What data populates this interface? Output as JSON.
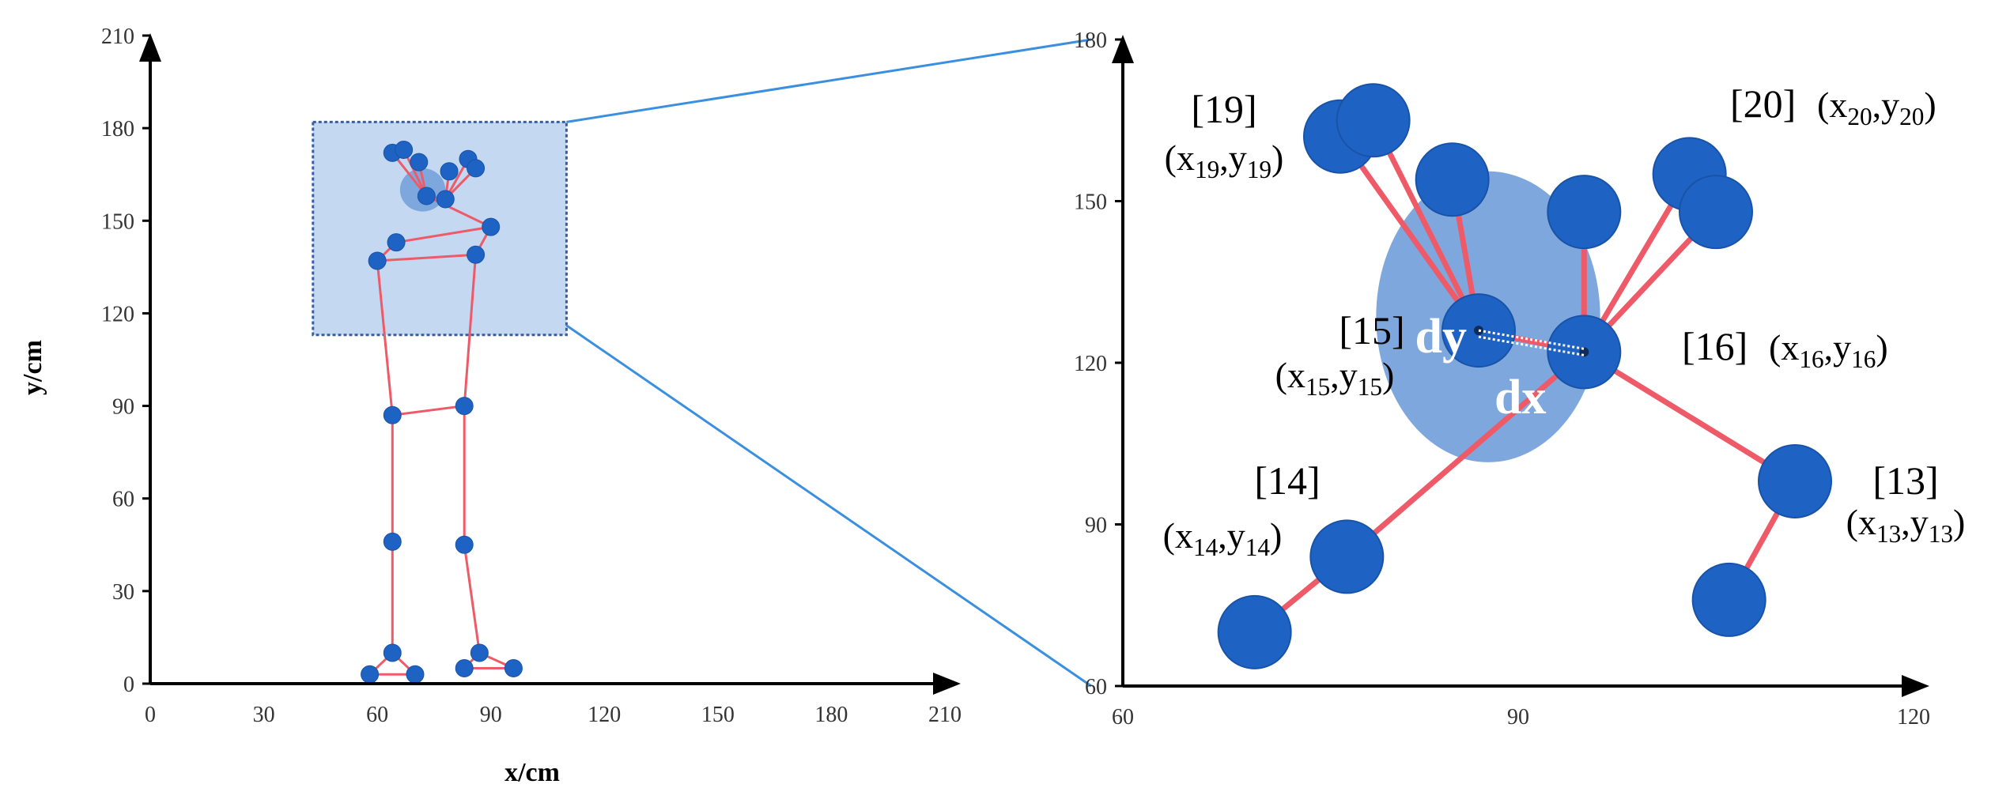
{
  "colors": {
    "axis": "#000000",
    "tick_label": "#333333",
    "bone": "#ee5a67",
    "joint": "#1e63c4",
    "joint_stroke": "#1853a8",
    "zoom_box_fill": "#c4d8f1",
    "zoom_box_stroke": "#3a5f9e",
    "zoom_line": "#3b8fe0",
    "head_ellipse": "#7ea8dd",
    "dxdy_text": "#ffffff"
  },
  "left_chart": {
    "xlabel": "x/cm",
    "ylabel": "y/cm",
    "xlim": [
      0,
      210
    ],
    "ylim": [
      0,
      210
    ],
    "xticks": [
      "0",
      "30",
      "60",
      "90",
      "120",
      "150",
      "180",
      "210"
    ],
    "yticks": [
      "0",
      "30",
      "60",
      "90",
      "120",
      "150",
      "180",
      "210"
    ],
    "zoom_region": {
      "x": [
        43,
        110
      ],
      "y": [
        113,
        182
      ]
    },
    "head_ellipse": {
      "cx": 72,
      "cy": 160,
      "rx": 6,
      "ry": 7
    },
    "joints": [
      {
        "x": 58,
        "y": 3
      },
      {
        "x": 70,
        "y": 3
      },
      {
        "x": 64,
        "y": 10
      },
      {
        "x": 64,
        "y": 46
      },
      {
        "x": 64,
        "y": 87
      },
      {
        "x": 83,
        "y": 5
      },
      {
        "x": 96,
        "y": 5
      },
      {
        "x": 87,
        "y": 10
      },
      {
        "x": 83,
        "y": 45
      },
      {
        "x": 83,
        "y": 90
      },
      {
        "x": 60,
        "y": 137
      },
      {
        "x": 65,
        "y": 143
      },
      {
        "x": 86,
        "y": 139
      },
      {
        "x": 90,
        "y": 148
      },
      {
        "x": 64,
        "y": 172
      },
      {
        "x": 67,
        "y": 173
      },
      {
        "x": 71,
        "y": 169
      },
      {
        "x": 73,
        "y": 158
      },
      {
        "x": 78,
        "y": 157
      },
      {
        "x": 79,
        "y": 166
      },
      {
        "x": 84,
        "y": 170
      },
      {
        "x": 86,
        "y": 167
      }
    ],
    "bones": [
      [
        0,
        1
      ],
      [
        1,
        2
      ],
      [
        0,
        2
      ],
      [
        2,
        3
      ],
      [
        3,
        4
      ],
      [
        4,
        9
      ],
      [
        5,
        6
      ],
      [
        6,
        7
      ],
      [
        5,
        7
      ],
      [
        7,
        8
      ],
      [
        8,
        9
      ],
      [
        4,
        10
      ],
      [
        9,
        12
      ],
      [
        10,
        12
      ],
      [
        10,
        11
      ],
      [
        11,
        13
      ],
      [
        12,
        13
      ],
      [
        13,
        17
      ],
      [
        17,
        18
      ],
      [
        18,
        20
      ],
      [
        17,
        14
      ],
      [
        17,
        15
      ],
      [
        17,
        16
      ],
      [
        18,
        19
      ],
      [
        18,
        21
      ]
    ]
  },
  "right_chart": {
    "xlim": [
      60,
      120
    ],
    "ylim": [
      60,
      180
    ],
    "xticks": [
      "60",
      "90",
      "120"
    ],
    "yticks": [
      "60",
      "90",
      "120",
      "150",
      "180"
    ],
    "head_ellipse": {
      "cx": 87,
      "cy": 130,
      "rx": 8.5,
      "ry": 27
    },
    "joints": [
      {
        "id": 19,
        "x": 76.5,
        "y": 162
      },
      {
        "id": 0,
        "x": 79,
        "y": 165
      },
      {
        "id": 0,
        "x": 85,
        "y": 154
      },
      {
        "id": 0,
        "x": 95,
        "y": 148
      },
      {
        "id": 20,
        "x": 103,
        "y": 155
      },
      {
        "id": 0,
        "x": 105,
        "y": 148
      },
      {
        "id": 15,
        "x": 87,
        "y": 126
      },
      {
        "id": 16,
        "x": 95,
        "y": 122
      },
      {
        "id": 14,
        "x": 77,
        "y": 84
      },
      {
        "id": 0,
        "x": 70,
        "y": 70
      },
      {
        "id": 13,
        "x": 111,
        "y": 98
      },
      {
        "id": 0,
        "x": 106,
        "y": 76
      }
    ],
    "bones": [
      [
        6,
        0
      ],
      [
        0,
        1
      ],
      [
        6,
        1
      ],
      [
        6,
        2
      ],
      [
        7,
        3
      ],
      [
        7,
        4
      ],
      [
        7,
        5
      ],
      [
        6,
        7
      ],
      [
        7,
        8
      ],
      [
        8,
        9
      ],
      [
        7,
        10
      ],
      [
        10,
        11
      ]
    ],
    "labels": [
      {
        "id": "19",
        "bracket": "[19]",
        "coord": "x19,y19"
      },
      {
        "id": "20",
        "bracket": "[20]",
        "coord": "x20,y20"
      },
      {
        "id": "15",
        "bracket": "[15]",
        "coord": "x15,y15"
      },
      {
        "id": "16",
        "bracket": "[16]",
        "coord": "x16,y16"
      },
      {
        "id": "14",
        "bracket": "[14]",
        "coord": "x14,y14"
      },
      {
        "id": "13",
        "bracket": "[13]",
        "coord": "x13,y13"
      }
    ],
    "dy_label": "dy",
    "dx_label": "dx"
  }
}
